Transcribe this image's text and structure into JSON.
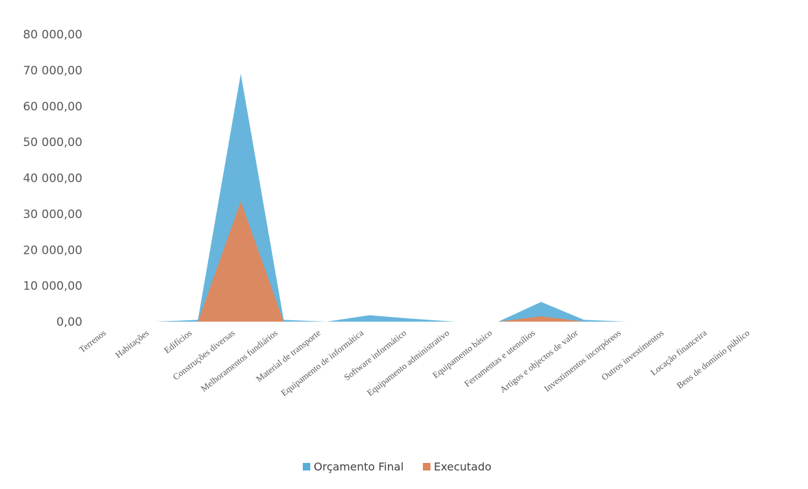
{
  "chart_data": {
    "type": "area",
    "categories": [
      "Terrenos",
      "Habitações",
      "Edifícios",
      "Construções diversas",
      "Melhoramentos fundiários",
      "Material de transporte",
      "Equipamento de informática",
      "Software informático",
      "Equipamento administrativo",
      "Equipamento básico",
      "Ferramentas e utensílios",
      "Artigos e objectos de valor",
      "Investimentos incorpóreos",
      "Outros investimentos",
      "Locação financeira",
      "Bens de domínio público"
    ],
    "series": [
      {
        "name": "Orçamento Final",
        "color": "#5aafd9",
        "values": [
          0,
          0,
          500,
          69000,
          500,
          0,
          1800,
          800,
          0,
          0,
          5500,
          500,
          0,
          0,
          0,
          0
        ]
      },
      {
        "name": "Executado",
        "color": "#e0875a",
        "values": [
          0,
          0,
          0,
          33500,
          0,
          0,
          0,
          0,
          0,
          0,
          1500,
          0,
          0,
          0,
          0,
          0
        ]
      }
    ],
    "yticks": [
      "0,00",
      "10 000,00",
      "20 000,00",
      "30 000,00",
      "40 000,00",
      "50 000,00",
      "60 000,00",
      "70 000,00",
      "80 000,00"
    ],
    "ylim": [
      0,
      80000
    ],
    "title": "",
    "xlabel": "",
    "ylabel": "",
    "legend_position": "bottom",
    "grid": false
  }
}
